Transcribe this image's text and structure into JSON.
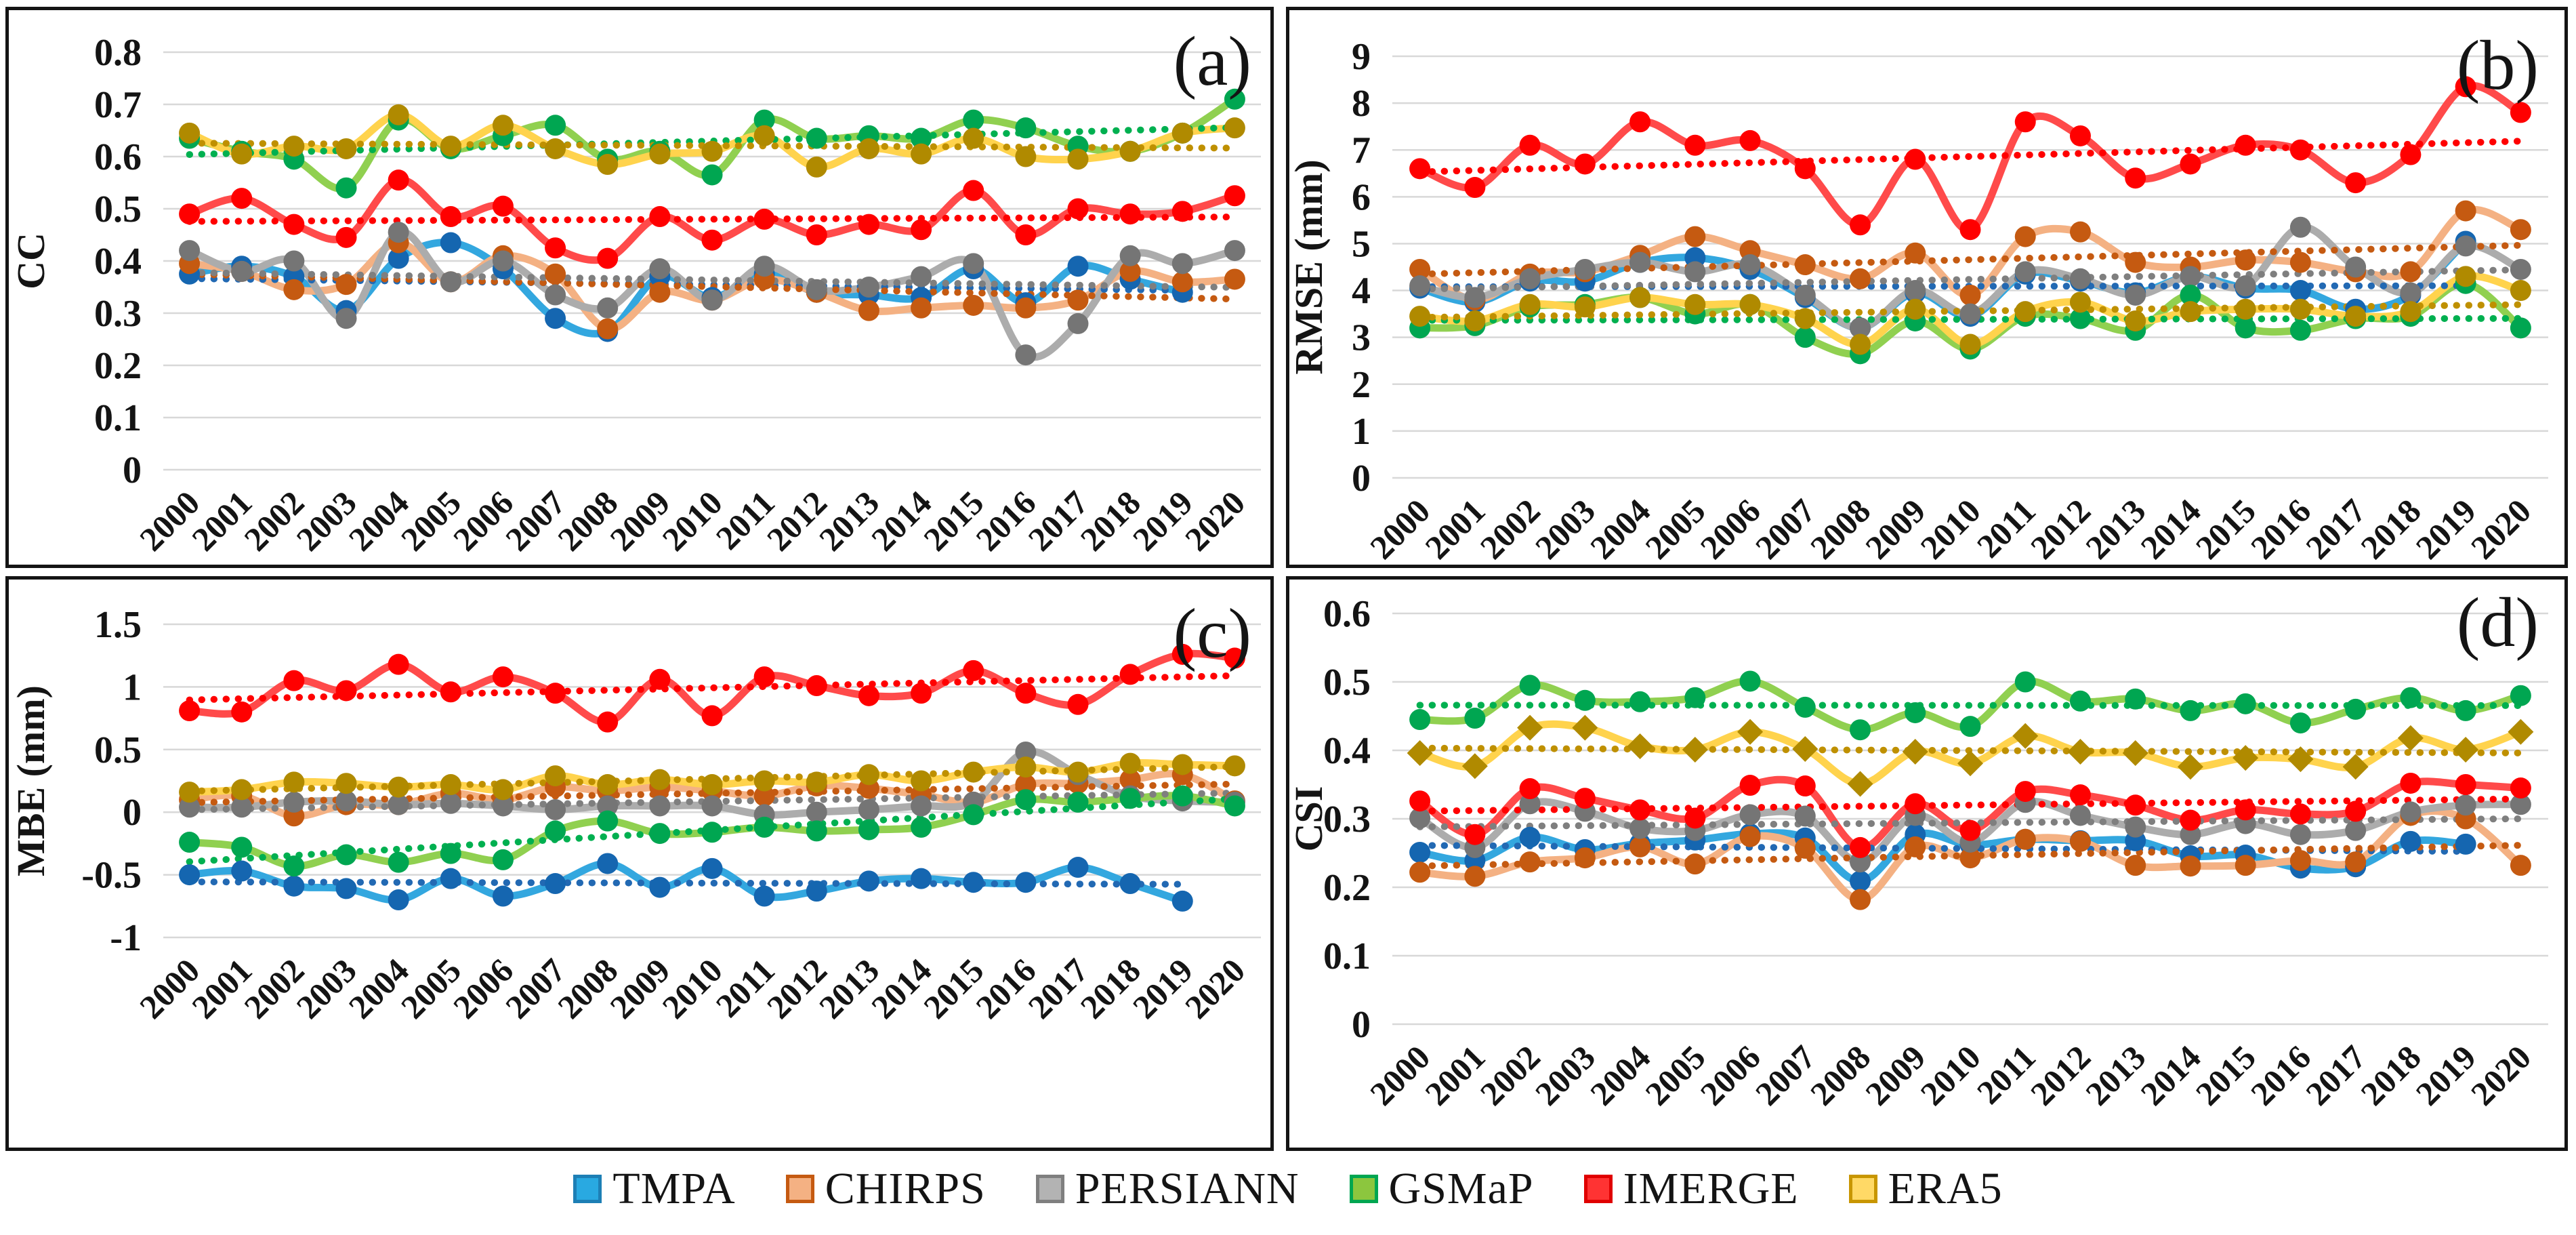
{
  "legend": {
    "items": [
      {
        "label": "TMPA",
        "fill": "#29A9E1",
        "border": "#1D7FB5"
      },
      {
        "label": "CHIRPS",
        "fill": "#F4B183",
        "border": "#C55A11"
      },
      {
        "label": "PERSIANN",
        "fill": "#B3B3B3",
        "border": "#7F7F7F"
      },
      {
        "label": "GSMaP",
        "fill": "#8CC63E",
        "border": "#00A651"
      },
      {
        "label": "IMERGE",
        "fill": "#FF3333",
        "border": "#E00000"
      },
      {
        "label": "ERA5",
        "fill": "#FFD966",
        "border": "#C89600"
      }
    ]
  },
  "series_styles": {
    "TMPA": {
      "line": "#33A7DF",
      "marker": "#1566B0",
      "trend": "#2269B3"
    },
    "CHIRPS": {
      "line": "#F4B183",
      "marker": "#C55A11",
      "trend": "#C55A11"
    },
    "PERSIANN": {
      "line": "#ACACAC",
      "marker": "#757575",
      "trend": "#7F7F7F"
    },
    "GSMaP": {
      "line": "#90D050",
      "marker": "#00A651",
      "trend": "#00B050"
    },
    "IMERGE": {
      "line": "#FF4A4A",
      "marker": "#FF0000",
      "trend": "#FF0000"
    },
    "ERA5": {
      "line": "#FFD34D",
      "marker": "#B08A00",
      "trend": "#BF9000"
    }
  },
  "chart_data": [
    {
      "type": "line",
      "panel_label": "(a)",
      "ylabel": "CC",
      "ylim": [
        0,
        0.8
      ],
      "grid": true,
      "yticks": [
        {
          "value": 0.8,
          "label": "0.8"
        },
        {
          "value": 0.7,
          "label": "0.7"
        },
        {
          "value": 0.6,
          "label": "0.6"
        },
        {
          "value": 0.5,
          "label": "0.5"
        },
        {
          "value": 0.4,
          "label": "0.4"
        },
        {
          "value": 0.3,
          "label": "0.3"
        },
        {
          "value": 0.2,
          "label": "0.2"
        },
        {
          "value": 0.1,
          "label": "0.1"
        },
        {
          "value": 0,
          "label": "0"
        }
      ],
      "x": [
        2000,
        2001,
        2002,
        2003,
        2004,
        2005,
        2006,
        2007,
        2008,
        2009,
        2010,
        2011,
        2012,
        2013,
        2014,
        2015,
        2016,
        2017,
        2018,
        2019,
        2020
      ],
      "series": [
        {
          "name": "TMPA",
          "marker_shape": "circle",
          "values": [
            0.375,
            0.39,
            0.37,
            0.305,
            0.405,
            0.435,
            0.385,
            0.29,
            0.265,
            0.37,
            0.33,
            0.375,
            0.34,
            0.335,
            0.33,
            0.385,
            0.32,
            0.39,
            0.365,
            0.34,
            null
          ]
        },
        {
          "name": "CHIRPS",
          "marker_shape": "circle",
          "values": [
            0.395,
            0.38,
            0.345,
            0.355,
            0.435,
            0.36,
            0.41,
            0.375,
            0.27,
            0.34,
            0.325,
            0.365,
            0.34,
            0.305,
            0.31,
            0.315,
            0.31,
            0.325,
            0.38,
            0.36,
            0.365
          ]
        },
        {
          "name": "PERSIANN",
          "marker_shape": "circle",
          "values": [
            0.42,
            0.38,
            0.4,
            0.29,
            0.455,
            0.36,
            0.4,
            0.335,
            0.31,
            0.385,
            0.325,
            0.39,
            0.345,
            0.35,
            0.37,
            0.395,
            0.22,
            0.28,
            0.41,
            0.395,
            0.42
          ]
        },
        {
          "name": "GSMaP",
          "marker_shape": "circle",
          "values": [
            0.635,
            0.61,
            0.595,
            0.54,
            0.67,
            0.615,
            0.64,
            0.66,
            0.595,
            0.61,
            0.565,
            0.67,
            0.635,
            0.64,
            0.635,
            0.67,
            0.655,
            0.62,
            0.61,
            0.645,
            0.71
          ]
        },
        {
          "name": "IMERGE",
          "marker_shape": "circle",
          "values": [
            0.49,
            0.52,
            0.47,
            0.445,
            0.555,
            0.485,
            0.505,
            0.425,
            0.405,
            0.485,
            0.44,
            0.48,
            0.45,
            0.47,
            0.46,
            0.535,
            0.45,
            0.5,
            0.49,
            0.495,
            0.525
          ]
        },
        {
          "name": "ERA5",
          "marker_shape": "circle",
          "values": [
            0.645,
            0.605,
            0.62,
            0.615,
            0.68,
            0.62,
            0.66,
            0.615,
            0.585,
            0.605,
            0.61,
            0.64,
            0.58,
            0.615,
            0.605,
            0.635,
            0.6,
            0.595,
            0.61,
            0.645,
            0.655
          ]
        }
      ],
      "trendlines": true,
      "legend_position": "none"
    },
    {
      "type": "line",
      "panel_label": "(b)",
      "ylabel": "RMSE (mm)",
      "ylim": [
        0,
        9
      ],
      "grid": true,
      "yticks": [
        {
          "value": 9,
          "label": "9"
        },
        {
          "value": 8,
          "label": "8"
        },
        {
          "value": 7,
          "label": "7"
        },
        {
          "value": 6,
          "label": "6"
        },
        {
          "value": 5,
          "label": "5"
        },
        {
          "value": 4,
          "label": "4"
        },
        {
          "value": 3,
          "label": "3"
        },
        {
          "value": 2,
          "label": "2"
        },
        {
          "value": 1,
          "label": "1"
        },
        {
          "value": 0,
          "label": "0"
        }
      ],
      "x": [
        2000,
        2001,
        2002,
        2003,
        2004,
        2005,
        2006,
        2007,
        2008,
        2009,
        2010,
        2011,
        2012,
        2013,
        2014,
        2015,
        2016,
        2017,
        2018,
        2019,
        2020
      ],
      "series": [
        {
          "name": "TMPA",
          "marker_shape": "circle",
          "values": [
            4.05,
            3.75,
            4.2,
            4.2,
            4.6,
            4.7,
            4.45,
            3.85,
            3.2,
            3.95,
            3.45,
            4.35,
            4.2,
            3.95,
            4.3,
            4.05,
            4.0,
            3.6,
            3.9,
            5.05,
            null
          ]
        },
        {
          "name": "CHIRPS",
          "marker_shape": "circle",
          "values": [
            4.45,
            3.8,
            4.35,
            4.4,
            4.75,
            5.15,
            4.85,
            4.55,
            4.25,
            4.8,
            3.9,
            5.15,
            5.25,
            4.6,
            4.5,
            4.65,
            4.6,
            4.4,
            4.4,
            5.7,
            5.3
          ]
        },
        {
          "name": "PERSIANN",
          "marker_shape": "circle",
          "values": [
            4.1,
            3.85,
            4.25,
            4.45,
            4.6,
            4.4,
            4.55,
            3.9,
            3.2,
            4.0,
            3.5,
            4.4,
            4.25,
            3.9,
            4.3,
            4.1,
            5.35,
            4.5,
            3.95,
            4.95,
            4.45
          ]
        },
        {
          "name": "GSMaP",
          "marker_shape": "circle",
          "values": [
            3.2,
            3.25,
            3.65,
            3.7,
            3.85,
            3.5,
            3.7,
            3.0,
            2.65,
            3.35,
            2.75,
            3.45,
            3.4,
            3.15,
            3.9,
            3.2,
            3.15,
            3.4,
            3.45,
            4.15,
            3.2
          ]
        },
        {
          "name": "IMERGE",
          "marker_shape": "circle",
          "values": [
            6.6,
            6.2,
            7.1,
            6.7,
            7.6,
            7.1,
            7.2,
            6.6,
            5.4,
            6.8,
            5.3,
            7.6,
            7.3,
            6.4,
            6.7,
            7.1,
            7.0,
            6.3,
            6.9,
            8.35,
            7.8
          ]
        },
        {
          "name": "ERA5",
          "marker_shape": "circle",
          "values": [
            3.45,
            3.35,
            3.7,
            3.65,
            3.85,
            3.7,
            3.7,
            3.4,
            2.85,
            3.6,
            2.85,
            3.55,
            3.75,
            3.35,
            3.55,
            3.6,
            3.6,
            3.45,
            3.55,
            4.3,
            4.0
          ]
        }
      ],
      "trendlines": true,
      "legend_position": "none"
    },
    {
      "type": "line",
      "panel_label": "(c)",
      "ylabel": "MBE (mm)",
      "ylim": [
        -1,
        1.5
      ],
      "grid": true,
      "yticks": [
        {
          "value": 1.5,
          "label": "1.5"
        },
        {
          "value": 1,
          "label": "1"
        },
        {
          "value": 0.5,
          "label": "0.5"
        },
        {
          "value": 0,
          "label": "0"
        },
        {
          "value": -0.5,
          "label": "-0.5"
        },
        {
          "value": -1,
          "label": "-1"
        }
      ],
      "x": [
        2000,
        2001,
        2002,
        2003,
        2004,
        2005,
        2006,
        2007,
        2008,
        2009,
        2010,
        2011,
        2012,
        2013,
        2014,
        2015,
        2016,
        2017,
        2018,
        2019,
        2020
      ],
      "series": [
        {
          "name": "TMPA",
          "marker_shape": "circle",
          "values": [
            -0.5,
            -0.47,
            -0.59,
            -0.61,
            -0.7,
            -0.53,
            -0.67,
            -0.57,
            -0.41,
            -0.6,
            -0.45,
            -0.67,
            -0.63,
            -0.55,
            -0.53,
            -0.56,
            -0.56,
            -0.44,
            -0.57,
            -0.71,
            null
          ]
        },
        {
          "name": "CHIRPS",
          "marker_shape": "circle",
          "values": [
            0.1,
            0.13,
            -0.03,
            0.06,
            0.06,
            0.15,
            0.1,
            0.2,
            0.17,
            0.2,
            0.17,
            0.13,
            0.21,
            0.19,
            0.14,
            0.08,
            0.22,
            0.23,
            0.26,
            0.3,
            0.09
          ]
        },
        {
          "name": "PERSIANN",
          "marker_shape": "circle",
          "values": [
            0.04,
            0.04,
            0.08,
            0.09,
            0.06,
            0.07,
            0.05,
            0.02,
            0.05,
            0.05,
            0.05,
            -0.02,
            0.0,
            0.02,
            0.05,
            0.08,
            0.48,
            0.3,
            0.13,
            0.09,
            0.08
          ]
        },
        {
          "name": "GSMaP",
          "marker_shape": "circle",
          "values": [
            -0.24,
            -0.28,
            -0.43,
            -0.34,
            -0.4,
            -0.33,
            -0.38,
            -0.15,
            -0.07,
            -0.17,
            -0.16,
            -0.12,
            -0.15,
            -0.14,
            -0.12,
            -0.02,
            0.1,
            0.08,
            0.11,
            0.13,
            0.05
          ]
        },
        {
          "name": "IMERGE",
          "marker_shape": "circle",
          "values": [
            0.81,
            0.8,
            1.05,
            0.97,
            1.18,
            0.96,
            1.08,
            0.95,
            0.72,
            1.06,
            0.77,
            1.08,
            1.01,
            0.93,
            0.95,
            1.13,
            0.95,
            0.86,
            1.1,
            1.26,
            1.23
          ]
        },
        {
          "name": "ERA5",
          "marker_shape": "circle",
          "values": [
            0.16,
            0.18,
            0.24,
            0.23,
            0.2,
            0.22,
            0.18,
            0.29,
            0.22,
            0.26,
            0.22,
            0.25,
            0.24,
            0.3,
            0.25,
            0.32,
            0.36,
            0.32,
            0.39,
            0.38,
            0.37
          ]
        }
      ],
      "trendlines": true,
      "legend_position": "none"
    },
    {
      "type": "line",
      "panel_label": "(d)",
      "ylabel": "CSI",
      "ylim": [
        0,
        0.6
      ],
      "grid": true,
      "yticks": [
        {
          "value": 0.6,
          "label": "0.6"
        },
        {
          "value": 0.5,
          "label": "0.5"
        },
        {
          "value": 0.4,
          "label": "0.4"
        },
        {
          "value": 0.3,
          "label": "0.3"
        },
        {
          "value": 0.2,
          "label": "0.2"
        },
        {
          "value": 0.1,
          "label": "0.1"
        },
        {
          "value": 0,
          "label": "0"
        }
      ],
      "x": [
        2000,
        2001,
        2002,
        2003,
        2004,
        2005,
        2006,
        2007,
        2008,
        2009,
        2010,
        2011,
        2012,
        2013,
        2014,
        2015,
        2016,
        2017,
        2018,
        2019,
        2020
      ],
      "series": [
        {
          "name": "TMPA",
          "marker_shape": "circle",
          "values": [
            0.251,
            0.239,
            0.273,
            0.255,
            0.264,
            0.269,
            0.278,
            0.272,
            0.209,
            0.277,
            0.262,
            0.27,
            0.268,
            0.268,
            0.246,
            0.247,
            0.228,
            0.23,
            0.267,
            0.263,
            null
          ]
        },
        {
          "name": "CHIRPS",
          "marker_shape": "circle",
          "values": [
            0.222,
            0.216,
            0.237,
            0.243,
            0.259,
            0.234,
            0.274,
            0.257,
            0.182,
            0.259,
            0.243,
            0.27,
            0.267,
            0.232,
            0.231,
            0.232,
            0.239,
            0.237,
            0.305,
            0.3,
            0.232
          ]
        },
        {
          "name": "PERSIANN",
          "marker_shape": "circle",
          "values": [
            0.301,
            0.258,
            0.322,
            0.311,
            0.286,
            0.283,
            0.306,
            0.304,
            0.237,
            0.305,
            0.266,
            0.324,
            0.305,
            0.288,
            0.277,
            0.293,
            0.277,
            0.283,
            0.31,
            0.32,
            0.321
          ]
        },
        {
          "name": "GSMaP",
          "marker_shape": "circle",
          "values": [
            0.445,
            0.447,
            0.495,
            0.473,
            0.471,
            0.477,
            0.501,
            0.463,
            0.43,
            0.455,
            0.435,
            0.5,
            0.472,
            0.475,
            0.458,
            0.468,
            0.44,
            0.46,
            0.477,
            0.458,
            0.48
          ]
        },
        {
          "name": "IMERGE",
          "marker_shape": "circle",
          "values": [
            0.326,
            0.277,
            0.344,
            0.33,
            0.313,
            0.301,
            0.349,
            0.348,
            0.258,
            0.322,
            0.283,
            0.34,
            0.335,
            0.32,
            0.298,
            0.313,
            0.307,
            0.311,
            0.352,
            0.35,
            0.345
          ]
        },
        {
          "name": "ERA5",
          "marker_shape": "diamond",
          "values": [
            0.396,
            0.377,
            0.433,
            0.433,
            0.406,
            0.401,
            0.427,
            0.402,
            0.351,
            0.398,
            0.381,
            0.421,
            0.398,
            0.396,
            0.376,
            0.389,
            0.387,
            0.376,
            0.418,
            0.401,
            0.427
          ]
        }
      ],
      "trendlines": true,
      "legend_position": "none"
    }
  ]
}
